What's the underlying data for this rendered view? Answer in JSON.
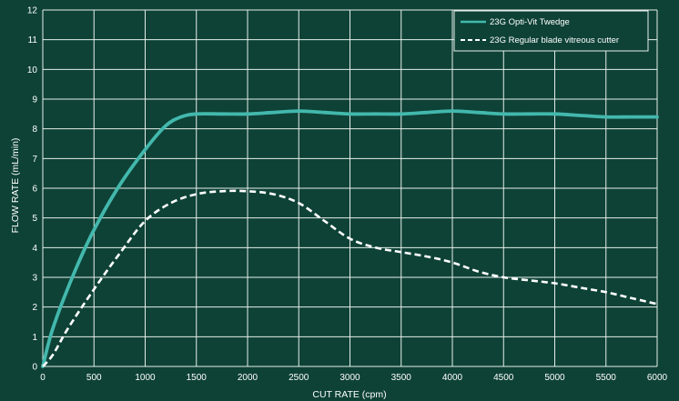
{
  "colors": {
    "background": "#0e4237",
    "grid": "#e6eee9",
    "series_solid": "#43b8ad",
    "series_dashed": "#ffffff"
  },
  "chart_data": {
    "type": "line",
    "xlabel": "CUT RATE (cpm)",
    "ylabel": "FLOW RATE  (mL/min)",
    "xlim": [
      0,
      6000
    ],
    "ylim": [
      0,
      12
    ],
    "xticks": [
      0,
      500,
      1000,
      1500,
      2000,
      2500,
      3000,
      3500,
      4000,
      4500,
      5000,
      5500,
      6000
    ],
    "yticks": [
      0,
      1,
      2,
      3,
      4,
      5,
      6,
      7,
      8,
      9,
      10,
      11,
      12
    ],
    "grid": true,
    "legend_position": "top-right",
    "series": [
      {
        "name": "23G Opti-Vit Twedge",
        "style": "solid",
        "color": "#43b8ad",
        "x": [
          0,
          100,
          300,
          500,
          750,
          1000,
          1200,
          1350,
          1500,
          1750,
          2000,
          2250,
          2500,
          2750,
          3000,
          3250,
          3500,
          3750,
          4000,
          4250,
          4500,
          4750,
          5000,
          5250,
          5500,
          5750,
          6000
        ],
        "y": [
          0,
          1.3,
          3.1,
          4.6,
          6.1,
          7.3,
          8.1,
          8.4,
          8.5,
          8.5,
          8.5,
          8.55,
          8.6,
          8.55,
          8.5,
          8.5,
          8.5,
          8.55,
          8.6,
          8.55,
          8.5,
          8.5,
          8.5,
          8.45,
          8.4,
          8.4,
          8.4
        ]
      },
      {
        "name": "23G Regular blade vitreous cutter",
        "style": "dashed",
        "color": "#ffffff",
        "x": [
          0,
          100,
          250,
          500,
          750,
          1000,
          1250,
          1500,
          1750,
          2000,
          2250,
          2500,
          2750,
          3000,
          3250,
          3500,
          3750,
          4000,
          4250,
          4500,
          4750,
          5000,
          5250,
          5500,
          5750,
          6000
        ],
        "y": [
          0,
          0.4,
          1.3,
          2.6,
          3.8,
          4.9,
          5.5,
          5.8,
          5.9,
          5.9,
          5.8,
          5.5,
          4.9,
          4.3,
          4.0,
          3.85,
          3.7,
          3.5,
          3.2,
          3.0,
          2.9,
          2.8,
          2.65,
          2.5,
          2.3,
          2.1
        ]
      }
    ]
  }
}
